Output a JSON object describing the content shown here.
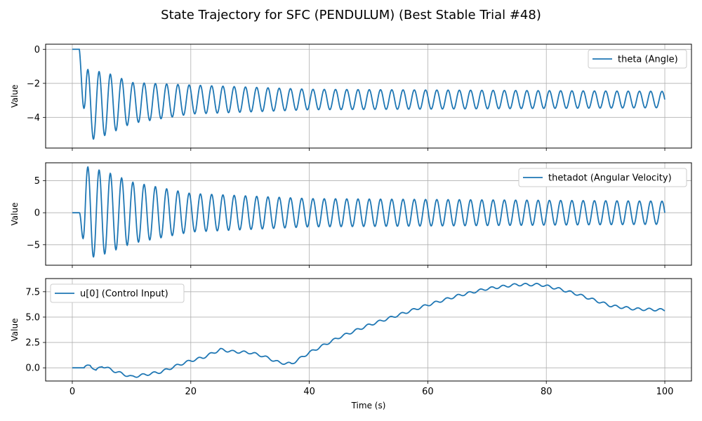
{
  "figure": {
    "title": "State Trajectory for SFC (PENDULUM) (Best Stable Trial #48)",
    "xlabel": "Time (s)"
  },
  "style": {
    "line_color": "#1f77b4",
    "grid_color": "#b0b0b0"
  },
  "chart_data": [
    {
      "type": "line",
      "ylabel": "Value",
      "legend": "top-right",
      "xlim": [
        -4.5,
        104.5
      ],
      "ylim": [
        -5.8,
        0.3
      ],
      "x_ticks": [
        0,
        20,
        40,
        60,
        80,
        100
      ],
      "y_ticks": [
        0,
        -2,
        -4
      ],
      "grid": true,
      "series": [
        {
          "name": "theta (Angle)",
          "model": "oscillation",
          "x_range": [
            0,
            100
          ],
          "start": 0.0,
          "onset": 1.2,
          "period": 1.9,
          "envelope": [
            [
              2,
              -3.3,
              2.15
            ],
            [
              6,
              -3.2,
              1.8
            ],
            [
              10,
              -3.15,
              1.2
            ],
            [
              20,
              -2.95,
              0.85
            ],
            [
              40,
              -2.95,
              0.6
            ],
            [
              100,
              -2.95,
              0.48
            ]
          ]
        }
      ]
    },
    {
      "type": "line",
      "ylabel": "Value",
      "legend": "top-right",
      "xlim": [
        -4.5,
        104.5
      ],
      "ylim": [
        -8.2,
        7.8
      ],
      "x_ticks": [
        0,
        20,
        40,
        60,
        80,
        100
      ],
      "y_ticks": [
        5,
        0,
        -5
      ],
      "grid": true,
      "series": [
        {
          "name": "thetadot (Angular Velocity)",
          "model": "oscillation",
          "x_range": [
            0,
            100
          ],
          "start": 0.0,
          "onset": 1.2,
          "period": 1.9,
          "envelope": [
            [
              2,
              0,
              7.3
            ],
            [
              6,
              0,
              6.3
            ],
            [
              10,
              0,
              4.8
            ],
            [
              20,
              0,
              3.0
            ],
            [
              40,
              0,
              2.2
            ],
            [
              100,
              0,
              1.8
            ]
          ]
        }
      ]
    },
    {
      "type": "line",
      "ylabel": "Value",
      "legend": "top-left",
      "xlim": [
        -4.5,
        104.5
      ],
      "ylim": [
        -1.3,
        8.8
      ],
      "x_ticks": [
        0,
        20,
        40,
        60,
        80,
        100
      ],
      "y_ticks": [
        7.5,
        5.0,
        2.5,
        0.0
      ],
      "grid": true,
      "series": [
        {
          "name": "u[0] (Control Input)",
          "model": "trend",
          "x_range": [
            0,
            100
          ],
          "points": [
            [
              0,
              0
            ],
            [
              2,
              0
            ],
            [
              3,
              0.3
            ],
            [
              4,
              -0.3
            ],
            [
              5,
              0.2
            ],
            [
              7,
              -0.3
            ],
            [
              8,
              -0.5
            ],
            [
              10,
              -0.9
            ],
            [
              12,
              -0.7
            ],
            [
              15,
              -0.4
            ],
            [
              18,
              0.3
            ],
            [
              20,
              0.7
            ],
            [
              22,
              1.0
            ],
            [
              25,
              1.8
            ],
            [
              27,
              1.6
            ],
            [
              30,
              1.5
            ],
            [
              32,
              1.2
            ],
            [
              35,
              0.5
            ],
            [
              37,
              0.4
            ],
            [
              40,
              1.5
            ],
            [
              45,
              3.0
            ],
            [
              50,
              4.2
            ],
            [
              55,
              5.2
            ],
            [
              60,
              6.2
            ],
            [
              65,
              7.1
            ],
            [
              70,
              7.8
            ],
            [
              75,
              8.2
            ],
            [
              79,
              8.2
            ],
            [
              82,
              7.8
            ],
            [
              85,
              7.3
            ],
            [
              88,
              6.7
            ],
            [
              91,
              6.1
            ],
            [
              95,
              5.8
            ],
            [
              100,
              5.7
            ]
          ],
          "ripple": 0.12,
          "period": 1.9
        }
      ]
    }
  ]
}
